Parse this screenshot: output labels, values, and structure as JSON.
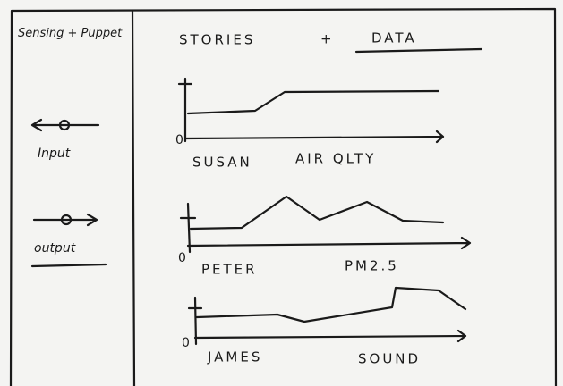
{
  "sidebar": {
    "title": "Sensing + Puppet",
    "items": [
      "Input",
      "output"
    ]
  },
  "header": {
    "title": "STORIES",
    "separator": "+",
    "subtitle": "DATA"
  },
  "stories": [
    {
      "name": "SUSAN",
      "data": "AIR QLTY",
      "origin": "0"
    },
    {
      "name": "PETER",
      "data": "PM2.5",
      "origin": "0"
    },
    {
      "name": "JAMES",
      "data": "SOUND",
      "origin": "0"
    }
  ]
}
